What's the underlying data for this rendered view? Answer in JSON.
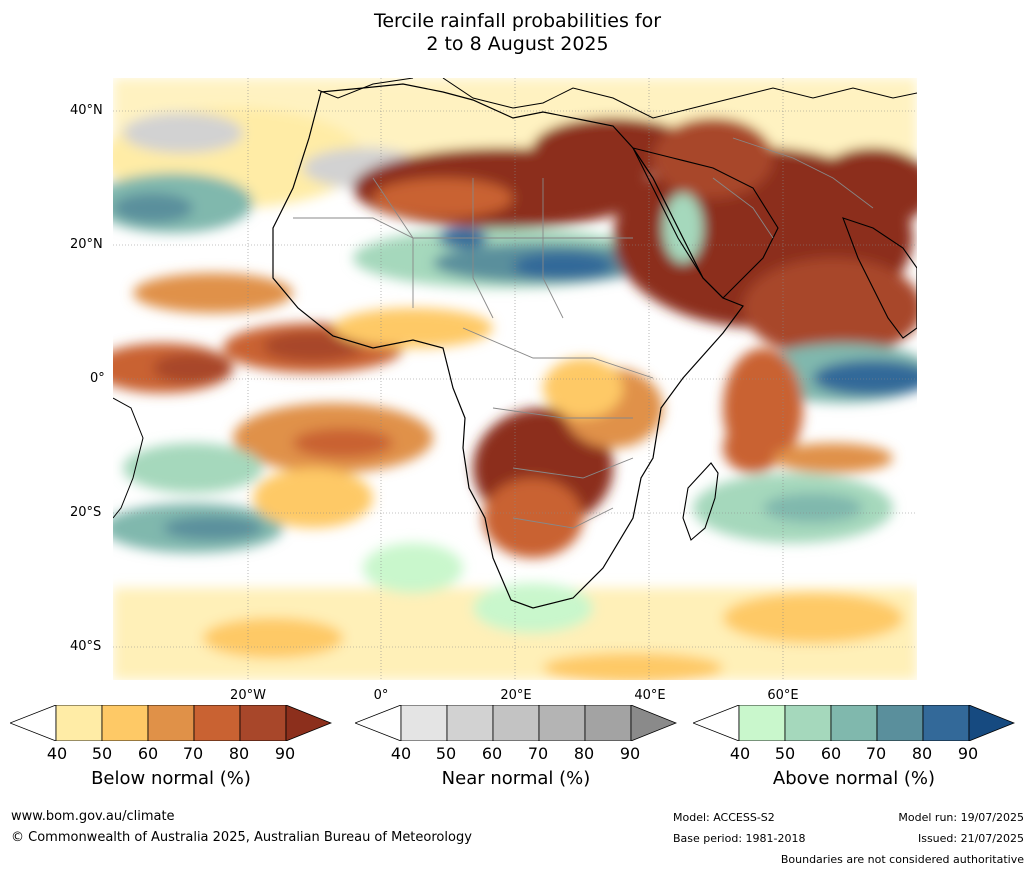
{
  "title": {
    "line1": "Tercile rainfall probabilities for",
    "line2": "2 to 8 August 2025"
  },
  "map": {
    "lat_labels": [
      "40°N",
      "20°N",
      "0°",
      "20°S",
      "40°S"
    ],
    "lon_labels": [
      "20°W",
      "0°",
      "20°E",
      "40°E",
      "60°E"
    ]
  },
  "colorbars": [
    {
      "title": "Below normal (%)",
      "ticks": [
        "40",
        "50",
        "60",
        "70",
        "80",
        "90"
      ],
      "colors": [
        "#ffffff",
        "#ffeca6",
        "#fec966",
        "#e09148",
        "#c96232",
        "#a8472a",
        "#8c2f1c"
      ]
    },
    {
      "title": "Near normal (%)",
      "ticks": [
        "40",
        "50",
        "60",
        "70",
        "80",
        "90"
      ],
      "colors": [
        "#ffffff",
        "#e4e4e4",
        "#d2d2d2",
        "#c3c3c3",
        "#b4b4b4",
        "#a3a3a3",
        "#8a8a8a"
      ]
    },
    {
      "title": "Above normal (%)",
      "ticks": [
        "40",
        "50",
        "60",
        "70",
        "80",
        "90"
      ],
      "colors": [
        "#ffffff",
        "#c9f7cc",
        "#a5d8bc",
        "#80b8ad",
        "#5a8f9c",
        "#336999",
        "#164a80"
      ]
    }
  ],
  "footer": {
    "website": "www.bom.gov.au/climate",
    "copyright": "© Commonwealth of Australia 2025, Australian Bureau of Meteorology",
    "model": "Model: ACCESS-S2",
    "base_period": "Base period: 1981-2018",
    "model_run": "Model run: 19/07/2025",
    "issued": "Issued: 21/07/2025",
    "disclaimer": "Boundaries are not considered authoritative"
  }
}
